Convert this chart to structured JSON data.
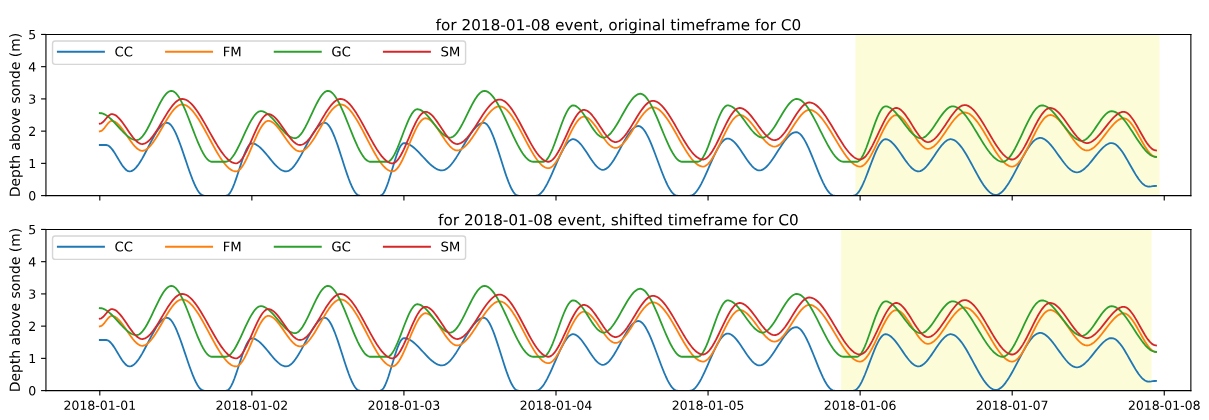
{
  "chart_data": [
    {
      "type": "line",
      "title": "for 2018-01-08 event, original timeframe for C0",
      "ylabel": "Depth above sonde (m)",
      "xlim": [
        "2017-12-31T15:30",
        "2018-01-08T04:12"
      ],
      "xticks": [
        "2018-01-01",
        "2018-01-02",
        "2018-01-03",
        "2018-01-04",
        "2018-01-05",
        "2018-01-06",
        "2018-01-07",
        "2018-01-08"
      ],
      "ylim": [
        0,
        5
      ],
      "yticks": [
        0,
        1,
        2,
        3,
        4,
        5
      ],
      "tick_labels": "y",
      "grid": false,
      "legend": "top left",
      "line_style": "solid",
      "marker": "none",
      "bands": [
        {
          "axis": "x",
          "from": "2018-01-05T23:15",
          "to": "2018-01-07T23:15",
          "color": "#fdfcd9"
        }
      ],
      "series": [
        {
          "name": "CC",
          "color": "#1f77b4",
          "x": [
            "2018-01-01T00:00",
            "2018-01-01T01:00",
            "2018-01-01T04:42",
            "2018-01-01T10:36",
            "2018-01-01T16:24",
            "2018-01-01T18:12",
            "2018-01-01T20:00",
            "2018-01-02T00:00",
            "2018-01-02T05:24",
            "2018-01-02T11:30",
            "2018-01-02T17:00",
            "2018-01-02T18:36",
            "2018-01-02T20:18",
            "2018-01-03T00:00",
            "2018-01-03T06:00",
            "2018-01-03T12:36",
            "2018-01-03T18:00",
            "2018-01-03T19:24",
            "2018-01-03T20:54",
            "2018-01-04T02:42",
            "2018-01-04T07:24",
            "2018-01-04T13:00",
            "2018-01-04T19:06",
            "2018-01-04T20:06",
            "2018-01-04T21:12",
            "2018-01-05T03:06",
            "2018-01-05T08:06",
            "2018-01-05T13:54",
            "2018-01-05T19:54",
            "2018-01-05T21:24",
            "2018-01-05T23:00",
            "2018-01-06T04:00",
            "2018-01-06T09:12",
            "2018-01-06T14:18",
            "2018-01-06T21:24",
            "2018-01-07T04:24",
            "2018-01-07T10:12",
            "2018-01-07T15:42",
            "2018-01-07T21:30",
            "2018-01-07T22:42"
          ],
          "values": [
            1.57,
            1.57,
            0.75,
            2.26,
            0,
            null,
            0,
            1.62,
            0.75,
            2.26,
            0,
            null,
            0,
            1.63,
            0.78,
            2.26,
            0,
            null,
            0,
            1.75,
            0.8,
            2.16,
            0,
            null,
            0,
            1.77,
            0.78,
            1.97,
            0,
            null,
            0,
            1.75,
            0.75,
            1.75,
            0.02,
            1.79,
            0.72,
            1.63,
            0.28,
            0.3
          ]
        },
        {
          "name": "FM",
          "color": "#ff7f0e",
          "x": [
            "2018-01-01T00:00",
            "2018-01-01T01:54",
            "2018-01-01T06:42",
            "2018-01-01T13:00",
            "2018-01-01T21:30",
            "2018-01-02T02:36",
            "2018-01-02T07:36",
            "2018-01-02T14:00",
            "2018-01-02T22:12",
            "2018-01-03T03:24",
            "2018-01-03T08:24",
            "2018-01-03T15:06",
            "2018-01-03T22:48",
            "2018-01-04T04:24",
            "2018-01-04T09:24",
            "2018-01-04T15:18",
            "2018-01-04T23:12",
            "2018-01-05T05:00",
            "2018-01-05T10:30",
            "2018-01-05T16:00",
            "2018-01-06T00:00",
            "2018-01-06T05:42",
            "2018-01-06T10:42",
            "2018-01-06T16:30",
            "2018-01-07T00:00",
            "2018-01-07T06:00",
            "2018-01-07T11:48",
            "2018-01-07T17:36",
            "2018-01-07T22:42"
          ],
          "values": [
            1.99,
            2.32,
            1.39,
            2.83,
            0.75,
            2.32,
            1.37,
            2.83,
            0.75,
            2.4,
            1.4,
            2.77,
            0.85,
            2.45,
            1.48,
            2.74,
            0.9,
            2.5,
            1.52,
            2.66,
            0.9,
            2.5,
            1.45,
            2.58,
            0.9,
            2.5,
            1.4,
            2.4,
            1.2
          ]
        },
        {
          "name": "GC",
          "color": "#2ca02c",
          "x": [
            "2018-01-01T00:00",
            "2018-01-01T05:48",
            "2018-01-01T11:18",
            "2018-01-01T17:42",
            "2018-01-01T19:54",
            "2018-01-02T01:24",
            "2018-01-02T06:48",
            "2018-01-02T12:00",
            "2018-01-02T18:42",
            "2018-01-02T21:24",
            "2018-01-03T02:06",
            "2018-01-03T07:18",
            "2018-01-03T12:42",
            "2018-01-03T20:24",
            "2018-01-03T22:00",
            "2018-01-04T02:42",
            "2018-01-04T07:30",
            "2018-01-04T13:18",
            "2018-01-04T19:54",
            "2018-01-04T22:24",
            "2018-01-05T03:06",
            "2018-01-05T08:36",
            "2018-01-05T14:00",
            "2018-01-05T21:24",
            "2018-01-05T23:30",
            "2018-01-06T04:00",
            "2018-01-06T09:36",
            "2018-01-06T14:36",
            "2018-01-06T22:30",
            "2018-01-07T04:42",
            "2018-01-07T11:00",
            "2018-01-07T15:42",
            "2018-01-07T22:42"
          ],
          "values": [
            2.56,
            1.72,
            3.25,
            1.05,
            1.05,
            2.62,
            1.78,
            3.25,
            1.05,
            1.05,
            2.68,
            1.8,
            3.25,
            1.05,
            1.05,
            2.8,
            1.8,
            3.16,
            1.05,
            1.05,
            2.8,
            1.8,
            3.0,
            1.05,
            1.05,
            2.77,
            1.78,
            2.77,
            1.05,
            2.8,
            1.7,
            2.62,
            1.2
          ]
        },
        {
          "name": "SM",
          "color": "#d62728",
          "x": [
            "2018-01-01T00:00",
            "2018-01-01T01:54",
            "2018-01-01T06:42",
            "2018-01-01T13:00",
            "2018-01-01T21:30",
            "2018-01-02T02:36",
            "2018-01-02T07:36",
            "2018-01-02T14:00",
            "2018-01-02T22:12",
            "2018-01-03T03:24",
            "2018-01-03T08:24",
            "2018-01-03T15:06",
            "2018-01-03T22:48",
            "2018-01-04T04:24",
            "2018-01-04T09:24",
            "2018-01-04T15:18",
            "2018-01-04T23:12",
            "2018-01-05T05:00",
            "2018-01-05T10:30",
            "2018-01-05T16:00",
            "2018-01-06T00:00",
            "2018-01-06T05:42",
            "2018-01-06T10:42",
            "2018-01-06T16:30",
            "2018-01-07T00:00",
            "2018-01-07T06:00",
            "2018-01-07T11:48",
            "2018-01-07T17:36",
            "2018-01-07T22:42"
          ],
          "values": [
            2.23,
            2.53,
            1.6,
            3.0,
            1.0,
            2.53,
            1.57,
            3.0,
            1.0,
            2.6,
            1.6,
            2.98,
            1.05,
            2.66,
            1.66,
            2.94,
            1.12,
            2.72,
            1.72,
            2.89,
            1.12,
            2.72,
            1.66,
            2.81,
            1.12,
            2.72,
            1.63,
            2.6,
            1.4
          ]
        }
      ]
    },
    {
      "type": "line",
      "title": "for 2018-01-08 event, shifted timeframe for C0",
      "ylabel": "Depth above sonde (m)",
      "xlim": [
        "2017-12-31T15:30",
        "2018-01-08T04:12"
      ],
      "xticks": [
        "2018-01-01",
        "2018-01-02",
        "2018-01-03",
        "2018-01-04",
        "2018-01-05",
        "2018-01-06",
        "2018-01-07",
        "2018-01-08"
      ],
      "ylim": [
        0,
        5
      ],
      "yticks": [
        0,
        1,
        2,
        3,
        4,
        5
      ],
      "grid": false,
      "legend": "top left",
      "line_style": "solid",
      "marker": "none",
      "bands": [
        {
          "axis": "x",
          "from": "2018-01-05T21:00",
          "to": "2018-01-07T22:00",
          "color": "#fdfcd9"
        }
      ],
      "series": [
        {
          "name": "CC",
          "color": "#1f77b4",
          "x": [
            "2018-01-01T00:00",
            "2018-01-01T01:00",
            "2018-01-01T04:42",
            "2018-01-01T10:36",
            "2018-01-01T16:24",
            "2018-01-01T18:12",
            "2018-01-01T20:00",
            "2018-01-02T00:00",
            "2018-01-02T05:24",
            "2018-01-02T11:30",
            "2018-01-02T17:00",
            "2018-01-02T18:36",
            "2018-01-02T20:18",
            "2018-01-03T00:00",
            "2018-01-03T06:00",
            "2018-01-03T12:36",
            "2018-01-03T18:00",
            "2018-01-03T19:24",
            "2018-01-03T20:54",
            "2018-01-04T02:42",
            "2018-01-04T07:24",
            "2018-01-04T13:00",
            "2018-01-04T19:06",
            "2018-01-04T20:06",
            "2018-01-04T21:12",
            "2018-01-05T03:06",
            "2018-01-05T08:06",
            "2018-01-05T13:54",
            "2018-01-05T19:54",
            "2018-01-05T21:24",
            "2018-01-05T23:00",
            "2018-01-06T04:00",
            "2018-01-06T09:12",
            "2018-01-06T14:18",
            "2018-01-06T21:24",
            "2018-01-07T04:24",
            "2018-01-07T10:12",
            "2018-01-07T15:42",
            "2018-01-07T21:30",
            "2018-01-07T22:42"
          ],
          "values": [
            1.57,
            1.57,
            0.75,
            2.26,
            0,
            null,
            0,
            1.62,
            0.75,
            2.26,
            0,
            null,
            0,
            1.63,
            0.78,
            2.26,
            0,
            null,
            0,
            1.75,
            0.8,
            2.16,
            0,
            null,
            0,
            1.77,
            0.78,
            1.97,
            0,
            null,
            0,
            1.75,
            0.75,
            1.75,
            0.02,
            1.79,
            0.72,
            1.63,
            0.28,
            0.3
          ]
        },
        {
          "name": "FM",
          "color": "#ff7f0e",
          "x": [
            "2018-01-01T00:00",
            "2018-01-01T01:54",
            "2018-01-01T06:42",
            "2018-01-01T13:00",
            "2018-01-01T21:30",
            "2018-01-02T02:36",
            "2018-01-02T07:36",
            "2018-01-02T14:00",
            "2018-01-02T22:12",
            "2018-01-03T03:24",
            "2018-01-03T08:24",
            "2018-01-03T15:06",
            "2018-01-03T22:48",
            "2018-01-04T04:24",
            "2018-01-04T09:24",
            "2018-01-04T15:18",
            "2018-01-04T23:12",
            "2018-01-05T05:00",
            "2018-01-05T10:30",
            "2018-01-05T16:00",
            "2018-01-06T00:00",
            "2018-01-06T05:42",
            "2018-01-06T10:42",
            "2018-01-06T16:30",
            "2018-01-07T00:00",
            "2018-01-07T06:00",
            "2018-01-07T11:48",
            "2018-01-07T17:36",
            "2018-01-07T22:42"
          ],
          "values": [
            1.99,
            2.32,
            1.39,
            2.83,
            0.75,
            2.32,
            1.37,
            2.83,
            0.75,
            2.4,
            1.4,
            2.77,
            0.85,
            2.45,
            1.48,
            2.74,
            0.9,
            2.5,
            1.52,
            2.66,
            0.9,
            2.5,
            1.45,
            2.58,
            0.9,
            2.5,
            1.4,
            2.4,
            1.2
          ]
        },
        {
          "name": "GC",
          "color": "#2ca02c",
          "x": [
            "2018-01-01T00:00",
            "2018-01-01T05:48",
            "2018-01-01T11:18",
            "2018-01-01T17:42",
            "2018-01-01T19:54",
            "2018-01-02T01:24",
            "2018-01-02T06:48",
            "2018-01-02T12:00",
            "2018-01-02T18:42",
            "2018-01-02T21:24",
            "2018-01-03T02:06",
            "2018-01-03T07:18",
            "2018-01-03T12:42",
            "2018-01-03T20:24",
            "2018-01-03T22:00",
            "2018-01-04T02:42",
            "2018-01-04T07:30",
            "2018-01-04T13:18",
            "2018-01-04T19:54",
            "2018-01-04T22:24",
            "2018-01-05T03:06",
            "2018-01-05T08:36",
            "2018-01-05T14:00",
            "2018-01-05T21:24",
            "2018-01-05T23:30",
            "2018-01-06T04:00",
            "2018-01-06T09:36",
            "2018-01-06T14:36",
            "2018-01-06T22:30",
            "2018-01-07T04:42",
            "2018-01-07T11:00",
            "2018-01-07T15:42",
            "2018-01-07T22:42"
          ],
          "values": [
            2.56,
            1.72,
            3.25,
            1.05,
            1.05,
            2.62,
            1.78,
            3.25,
            1.05,
            1.05,
            2.68,
            1.8,
            3.25,
            1.05,
            1.05,
            2.8,
            1.8,
            3.16,
            1.05,
            1.05,
            2.8,
            1.8,
            3.0,
            1.05,
            1.05,
            2.77,
            1.78,
            2.77,
            1.05,
            2.8,
            1.7,
            2.62,
            1.2
          ]
        },
        {
          "name": "SM",
          "color": "#d62728",
          "x": [
            "2018-01-01T00:00",
            "2018-01-01T01:54",
            "2018-01-01T06:42",
            "2018-01-01T13:00",
            "2018-01-01T21:30",
            "2018-01-02T02:36",
            "2018-01-02T07:36",
            "2018-01-02T14:00",
            "2018-01-02T22:12",
            "2018-01-03T03:24",
            "2018-01-03T08:24",
            "2018-01-03T15:06",
            "2018-01-03T22:48",
            "2018-01-04T04:24",
            "2018-01-04T09:24",
            "2018-01-04T15:18",
            "2018-01-04T23:12",
            "2018-01-05T05:00",
            "2018-01-05T10:30",
            "2018-01-05T16:00",
            "2018-01-06T00:00",
            "2018-01-06T05:42",
            "2018-01-06T10:42",
            "2018-01-06T16:30",
            "2018-01-07T00:00",
            "2018-01-07T06:00",
            "2018-01-07T11:48",
            "2018-01-07T17:36",
            "2018-01-07T22:42"
          ],
          "values": [
            2.23,
            2.53,
            1.6,
            3.0,
            1.0,
            2.53,
            1.57,
            3.0,
            1.0,
            2.6,
            1.6,
            2.98,
            1.05,
            2.66,
            1.66,
            2.94,
            1.12,
            2.72,
            1.72,
            2.89,
            1.12,
            2.72,
            1.66,
            2.81,
            1.12,
            2.72,
            1.63,
            2.6,
            1.4
          ]
        }
      ]
    }
  ]
}
